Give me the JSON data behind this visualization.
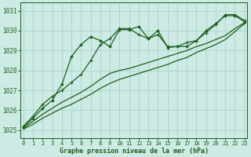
{
  "title": "Graphe pression niveau de la mer (hPa)",
  "background_color": "#ceeae4",
  "grid_color": "#aad4cc",
  "line_color": "#1a5e1a",
  "xlim": [
    -0.3,
    23.3
  ],
  "ylim": [
    1024.6,
    1031.4
  ],
  "yticks": [
    1025,
    1026,
    1027,
    1028,
    1029,
    1030,
    1031
  ],
  "xticks": [
    0,
    1,
    2,
    3,
    4,
    5,
    6,
    7,
    8,
    9,
    10,
    11,
    12,
    13,
    14,
    15,
    16,
    17,
    18,
    19,
    20,
    21,
    22,
    23
  ],
  "series_jagged1": [
    1025.2,
    1025.7,
    1026.3,
    1026.7,
    1027.0,
    1027.4,
    1027.8,
    1028.5,
    1029.3,
    1029.6,
    1030.1,
    1030.1,
    1029.8,
    1029.6,
    1029.8,
    1029.2,
    1029.2,
    1029.4,
    1029.5,
    1029.9,
    1030.3,
    1030.8,
    1030.8,
    1030.5
  ],
  "series_jagged2": [
    1025.15,
    1025.6,
    1026.1,
    1026.5,
    1027.3,
    1028.7,
    1029.3,
    1029.7,
    1029.5,
    1029.2,
    1030.05,
    1030.05,
    1030.2,
    1029.6,
    1030.0,
    1029.15,
    1029.2,
    1029.2,
    1029.5,
    1030.0,
    1030.35,
    1030.75,
    1030.75,
    1030.45
  ],
  "series_trend1": [
    1025.1,
    1025.45,
    1025.8,
    1026.1,
    1026.4,
    1026.65,
    1026.9,
    1027.2,
    1027.55,
    1027.85,
    1028.0,
    1028.1,
    1028.25,
    1028.4,
    1028.55,
    1028.7,
    1028.85,
    1029.0,
    1029.2,
    1029.35,
    1029.55,
    1029.75,
    1030.1,
    1030.4
  ],
  "series_trend2": [
    1025.05,
    1025.3,
    1025.6,
    1025.85,
    1026.1,
    1026.3,
    1026.55,
    1026.8,
    1027.1,
    1027.35,
    1027.55,
    1027.7,
    1027.85,
    1028.0,
    1028.15,
    1028.3,
    1028.5,
    1028.65,
    1028.9,
    1029.1,
    1029.3,
    1029.55,
    1029.95,
    1030.35
  ]
}
